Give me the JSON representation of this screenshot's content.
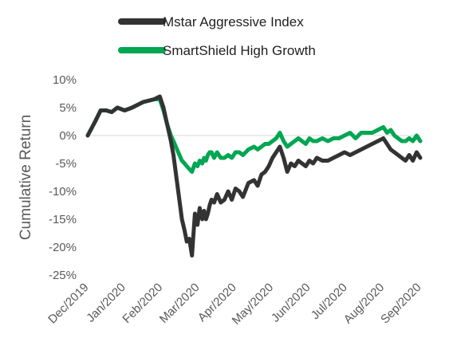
{
  "chart_data": {
    "type": "line",
    "title": "",
    "xlabel": "",
    "ylabel": "Cumulative Return",
    "legend_position": "top",
    "grid": false,
    "ylim": [
      -25,
      10
    ],
    "y_ticks": [
      "10%",
      "5%",
      "0%",
      "-5%",
      "-10%",
      "-15%",
      "-20%",
      "-25%"
    ],
    "x_ticks": [
      "Dec/2019",
      "Jan/2020",
      "Feb/2020",
      "Mar/2020",
      "Apr/2020",
      "May/2020",
      "Jun/2020",
      "Jul/2020",
      "Aug/2020",
      "Sep/2020"
    ],
    "series": [
      {
        "name": "Mstar Aggressive Index",
        "color": "#333333",
        "x": [
          0,
          0.2,
          0.35,
          0.5,
          0.65,
          0.8,
          1.0,
          1.2,
          1.5,
          1.8,
          1.95,
          2.05,
          2.15,
          2.25,
          2.32,
          2.45,
          2.55,
          2.62,
          2.68,
          2.75,
          2.82,
          2.9,
          2.97,
          3.03,
          3.1,
          3.15,
          3.2,
          3.25,
          3.3,
          3.35,
          3.42,
          3.5,
          3.6,
          3.7,
          3.8,
          3.9,
          4.0,
          4.1,
          4.2,
          4.35,
          4.5,
          4.6,
          4.7,
          4.8,
          4.9,
          5.0,
          5.1,
          5.2,
          5.3,
          5.4,
          5.5,
          5.6,
          5.7,
          5.8,
          5.9,
          6.0,
          6.1,
          6.2,
          6.35,
          6.5,
          6.65,
          6.8,
          6.95,
          7.1,
          7.25,
          7.4,
          7.55,
          7.7,
          7.85,
          8.0,
          8.1,
          8.2,
          8.3,
          8.4,
          8.5,
          8.6,
          8.7,
          8.8,
          8.9,
          9.0
        ],
        "values": [
          0,
          2.5,
          4.5,
          4.5,
          4.2,
          5.0,
          4.5,
          5.0,
          6.0,
          6.5,
          7.0,
          5.0,
          2.0,
          -1.0,
          -3.5,
          -10.0,
          -15.0,
          -17.0,
          -19.0,
          -18.5,
          -21.5,
          -14.0,
          -16.0,
          -13.0,
          -15.0,
          -13.5,
          -15.0,
          -14.0,
          -12.5,
          -11.5,
          -12.0,
          -10.5,
          -12.0,
          -11.5,
          -10.0,
          -11.5,
          -9.5,
          -10.0,
          -11.0,
          -8.5,
          -8.0,
          -9.0,
          -7.0,
          -6.5,
          -5.5,
          -4.0,
          -3.0,
          -2.0,
          -4.0,
          -6.5,
          -5.0,
          -5.5,
          -4.5,
          -5.0,
          -5.5,
          -4.5,
          -5.0,
          -4.0,
          -4.5,
          -4.5,
          -4.0,
          -3.5,
          -3.0,
          -3.5,
          -3.0,
          -2.5,
          -2.0,
          -1.5,
          -1.0,
          -0.5,
          -1.5,
          -2.5,
          -3.0,
          -3.5,
          -4.0,
          -4.5,
          -3.5,
          -4.5,
          -3.0,
          -4.0
        ]
      },
      {
        "name": "SmartShield High Growth",
        "color": "#00a651",
        "x": [
          0,
          0.2,
          0.35,
          0.5,
          0.65,
          0.8,
          1.0,
          1.2,
          1.5,
          1.8,
          1.95,
          2.05,
          2.15,
          2.25,
          2.32,
          2.45,
          2.55,
          2.62,
          2.68,
          2.75,
          2.82,
          2.9,
          2.97,
          3.03,
          3.1,
          3.15,
          3.2,
          3.25,
          3.3,
          3.35,
          3.42,
          3.5,
          3.6,
          3.7,
          3.8,
          3.9,
          4.0,
          4.1,
          4.2,
          4.35,
          4.5,
          4.6,
          4.7,
          4.8,
          4.9,
          5.0,
          5.1,
          5.2,
          5.3,
          5.4,
          5.5,
          5.6,
          5.7,
          5.8,
          5.9,
          6.0,
          6.1,
          6.2,
          6.35,
          6.5,
          6.65,
          6.8,
          6.95,
          7.1,
          7.25,
          7.4,
          7.55,
          7.7,
          7.85,
          8.0,
          8.1,
          8.2,
          8.3,
          8.4,
          8.5,
          8.6,
          8.7,
          8.8,
          8.9,
          9.0
        ],
        "values": [
          0,
          2.5,
          4.5,
          4.5,
          4.2,
          5.0,
          4.5,
          5.0,
          6.0,
          6.5,
          6.5,
          4.5,
          2.0,
          0,
          -1.0,
          -3.0,
          -4.5,
          -5.0,
          -5.5,
          -6.0,
          -6.5,
          -5.0,
          -5.5,
          -4.5,
          -5.0,
          -4.0,
          -4.5,
          -3.5,
          -3.0,
          -3.0,
          -4.0,
          -3.0,
          -4.0,
          -4.0,
          -3.5,
          -4.0,
          -3.0,
          -3.0,
          -3.5,
          -2.5,
          -2.0,
          -2.5,
          -2.0,
          -1.5,
          -1.5,
          -1.0,
          -0.5,
          0.5,
          -1.0,
          -2.0,
          -1.5,
          -1.0,
          -0.5,
          -1.0,
          -1.5,
          -0.5,
          -1.0,
          -1.0,
          -0.5,
          -1.0,
          -0.5,
          -0.5,
          0,
          0.5,
          -0.5,
          0.5,
          0.5,
          0.5,
          1.0,
          1.5,
          0.5,
          1.0,
          0,
          -0.5,
          -1.0,
          -1.0,
          -0.5,
          -1.0,
          0,
          -1.0
        ]
      }
    ]
  }
}
